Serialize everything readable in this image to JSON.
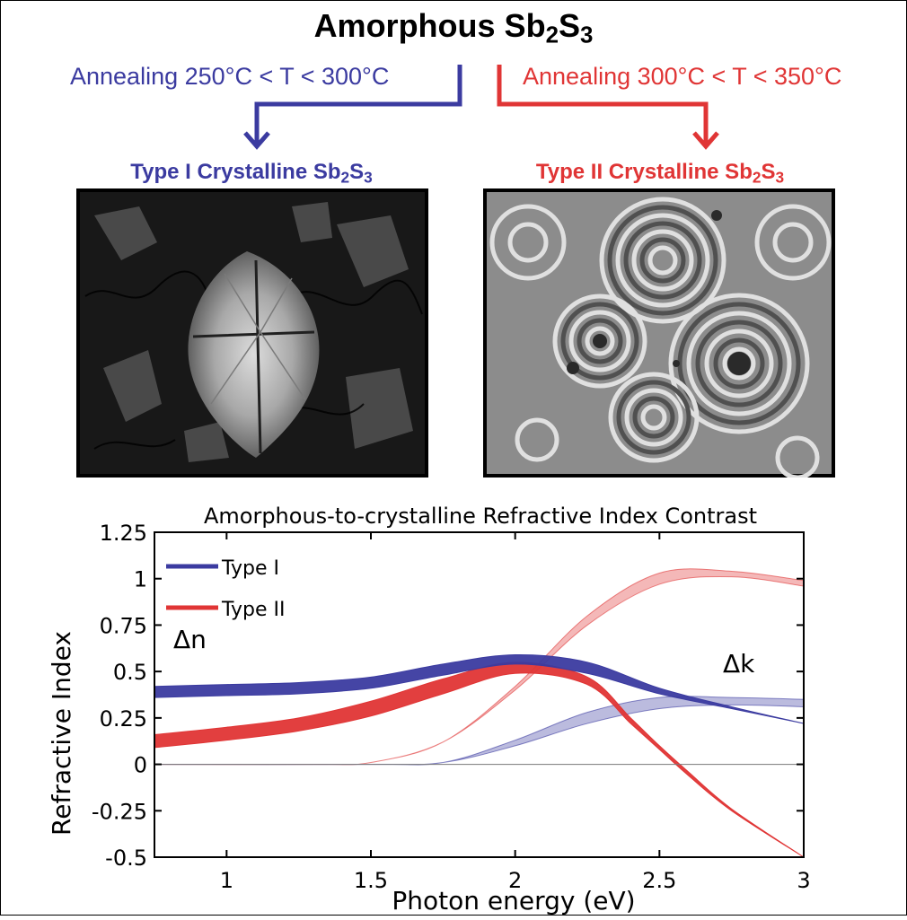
{
  "header": {
    "title_main": "Amorphous Sb",
    "title_sub1": "2",
    "title_mid": "S",
    "title_sub2": "3"
  },
  "branches": [
    {
      "label": "Annealing 250°C < T < 300°C",
      "color": "#3b3ba0"
    },
    {
      "label": "Annealing 300°C < T < 350°C",
      "color": "#e03535"
    }
  ],
  "types": [
    {
      "prefix": "Type I Crystalline Sb",
      "s1": "2",
      "mid": "S",
      "s2": "3",
      "color": "#3b3ba0",
      "micrograph": "dark-polycrystalline-micrograph"
    },
    {
      "prefix": "Type II Crystalline Sb",
      "s1": "2",
      "mid": "S",
      "s2": "3",
      "color": "#e03535",
      "micrograph": "ring-pattern-micrograph"
    }
  ],
  "chart_data": {
    "type": "line",
    "title": "Amorphous-to-crystalline Refractive Index Contrast",
    "xlabel": "Photon energy (eV)",
    "ylabel": "Refractive Index",
    "xlim": [
      0.75,
      3
    ],
    "ylim": [
      -0.5,
      1.25
    ],
    "xticks": [
      1,
      1.5,
      2,
      2.5,
      3
    ],
    "xtick_labels": [
      "1",
      "1.5",
      "2",
      "2.5",
      "3"
    ],
    "yticks": [
      -0.5,
      -0.25,
      0,
      0.25,
      0.5,
      0.75,
      1,
      1.25
    ],
    "ytick_labels": [
      "-0.5",
      "-0.25",
      "0",
      "0.25",
      "0.5",
      "0.75",
      "1",
      "1.25"
    ],
    "legend_position": "top-left",
    "annotations": [
      "Δn",
      "Δk"
    ],
    "series": [
      {
        "name": "Type I",
        "quantity": "Δn",
        "color": "#3b3ba0",
        "x": [
          0.75,
          1.0,
          1.25,
          1.5,
          1.75,
          2.0,
          2.25,
          2.5,
          2.75,
          3.0
        ],
        "lower": [
          0.36,
          0.37,
          0.38,
          0.41,
          0.48,
          0.54,
          0.49,
          0.38,
          0.3,
          0.22
        ],
        "upper": [
          0.42,
          0.43,
          0.44,
          0.47,
          0.54,
          0.59,
          0.55,
          0.41,
          0.31,
          0.22
        ]
      },
      {
        "name": "Type II",
        "quantity": "Δn",
        "color": "#e03535",
        "x": [
          0.75,
          1.0,
          1.25,
          1.5,
          1.75,
          2.0,
          2.25,
          2.4,
          2.5,
          2.6,
          2.75,
          3.0
        ],
        "lower": [
          0.09,
          0.13,
          0.18,
          0.26,
          0.38,
          0.49,
          0.43,
          0.22,
          0.08,
          -0.06,
          -0.25,
          -0.5
        ],
        "upper": [
          0.16,
          0.2,
          0.25,
          0.34,
          0.46,
          0.55,
          0.47,
          0.25,
          0.1,
          -0.04,
          -0.24,
          -0.5
        ]
      },
      {
        "name": "",
        "quantity": "Δk",
        "color": "#3b3ba0",
        "x": [
          0.75,
          1.5,
          1.75,
          2.0,
          2.25,
          2.5,
          2.75,
          3.0
        ],
        "lower": [
          0,
          0,
          0.01,
          0.1,
          0.22,
          0.3,
          0.32,
          0.31
        ],
        "upper": [
          0,
          0,
          0.01,
          0.13,
          0.28,
          0.36,
          0.36,
          0.35
        ]
      },
      {
        "name": "",
        "quantity": "Δk",
        "color": "#e03535",
        "x": [
          0.75,
          1.3,
          1.5,
          1.75,
          2.0,
          2.25,
          2.5,
          2.75,
          3.0
        ],
        "lower": [
          0,
          0,
          0.01,
          0.12,
          0.4,
          0.75,
          0.97,
          1.01,
          0.96
        ],
        "upper": [
          0,
          0,
          0.01,
          0.12,
          0.42,
          0.8,
          1.03,
          1.04,
          0.99
        ]
      }
    ]
  }
}
